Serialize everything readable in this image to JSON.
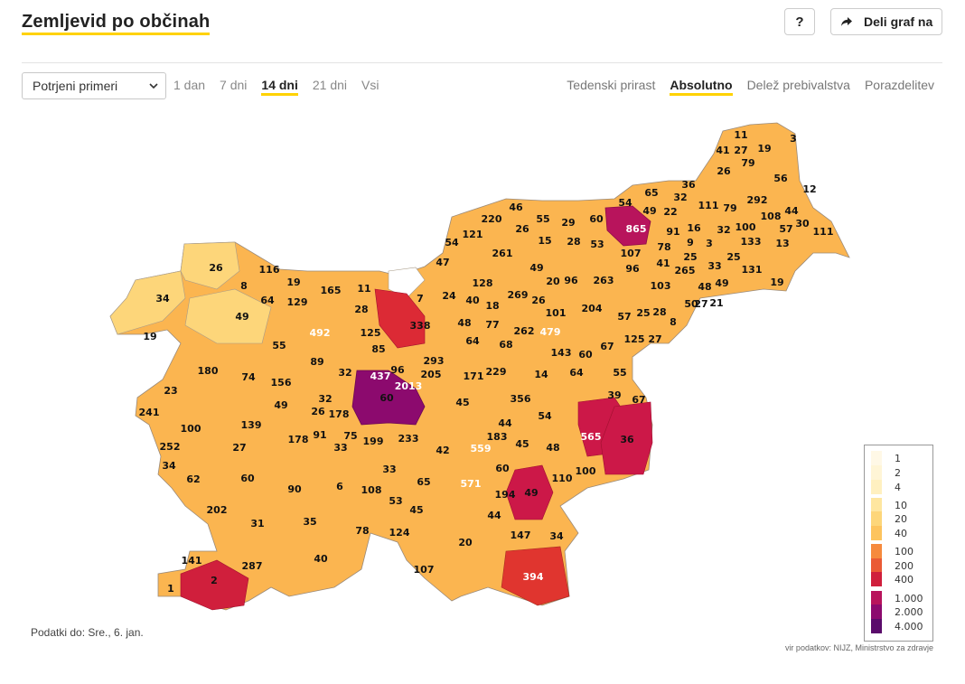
{
  "header": {
    "title": "Zemljevid po občinah",
    "help_label": "?",
    "share_label": "Deli graf na"
  },
  "controls": {
    "metric_select": "Potrjeni primeri",
    "time_filters": [
      {
        "label": "1 dan",
        "active": false
      },
      {
        "label": "7 dni",
        "active": false
      },
      {
        "label": "14 dni",
        "active": true
      },
      {
        "label": "21 dni",
        "active": false
      },
      {
        "label": "Vsi",
        "active": false
      }
    ],
    "view_modes": [
      {
        "label": "Tedenski prirast",
        "active": false
      },
      {
        "label": "Absolutno",
        "active": true
      },
      {
        "label": "Delež prebivalstva",
        "active": false
      },
      {
        "label": "Porazdelitev",
        "active": false
      }
    ]
  },
  "map": {
    "municipality_values": [
      {
        "v": "11",
        "c": "#fee6a0"
      },
      {
        "v": "27",
        "c": "#fdd67a"
      },
      {
        "v": "19",
        "c": "#fdd67a"
      },
      {
        "v": "3",
        "c": "#fff5d6"
      },
      {
        "v": "41",
        "c": "#fdc45e"
      },
      {
        "v": "79",
        "c": "#fbaa4e"
      },
      {
        "v": "26",
        "c": "#fdd67a"
      },
      {
        "v": "56",
        "c": "#fbb550"
      },
      {
        "v": "12",
        "c": "#fee6a0"
      },
      {
        "v": "36",
        "c": "#fdc45e"
      },
      {
        "v": "65",
        "c": "#fbaa4e"
      },
      {
        "v": "32",
        "c": "#fdc45e"
      },
      {
        "v": "54",
        "c": "#fbb550"
      },
      {
        "v": "49",
        "c": "#fdc45e"
      },
      {
        "v": "22",
        "c": "#fdd67a"
      },
      {
        "v": "111",
        "c": "#f68a3d"
      },
      {
        "v": "79",
        "c": "#fbaa4e"
      },
      {
        "v": "292",
        "c": "#e0352f"
      },
      {
        "v": "108",
        "c": "#f68a3d"
      },
      {
        "v": "44",
        "c": "#fdc45e"
      },
      {
        "v": "30",
        "c": "#fdd67a"
      },
      {
        "v": "57",
        "c": "#fbb550"
      },
      {
        "v": "111",
        "c": "#f68a3d"
      },
      {
        "v": "13",
        "c": "#fee6a0"
      },
      {
        "v": "46",
        "c": "#fdc45e"
      },
      {
        "v": "55",
        "c": "#fbb550"
      },
      {
        "v": "29",
        "c": "#fdd67a"
      },
      {
        "v": "60",
        "c": "#fbb550"
      },
      {
        "v": "220",
        "c": "#ea5a35"
      },
      {
        "v": "121",
        "c": "#f2713a"
      },
      {
        "v": "26",
        "c": "#fdd67a"
      },
      {
        "v": "15",
        "c": "#fee6a0"
      },
      {
        "v": "28",
        "c": "#fdd67a"
      },
      {
        "v": "53",
        "c": "#fbb550"
      },
      {
        "v": "865",
        "c": "#b8145c"
      },
      {
        "v": "91",
        "c": "#fbaa4e"
      },
      {
        "v": "16",
        "c": "#fee6a0"
      },
      {
        "v": "32",
        "c": "#fdc45e"
      },
      {
        "v": "100",
        "c": "#f68a3d"
      },
      {
        "v": "133",
        "c": "#f2713a"
      },
      {
        "v": "54",
        "c": "#fbb550"
      },
      {
        "v": "47",
        "c": "#fdc45e"
      },
      {
        "v": "261",
        "c": "#e0352f"
      },
      {
        "v": "49",
        "c": "#fdc45e"
      },
      {
        "v": "78",
        "c": "#fbaa4e"
      },
      {
        "v": "9",
        "c": "#fff0c0"
      },
      {
        "v": "3",
        "c": "#fff5d6"
      },
      {
        "v": "107",
        "c": "#f68a3d"
      },
      {
        "v": "25",
        "c": "#fdd67a"
      },
      {
        "v": "41",
        "c": "#fdc45e"
      },
      {
        "v": "265",
        "c": "#e0352f"
      },
      {
        "v": "33",
        "c": "#fdc45e"
      },
      {
        "v": "25",
        "c": "#fdd67a"
      },
      {
        "v": "131",
        "c": "#f2713a"
      },
      {
        "v": "96",
        "c": "#fbaa4e"
      },
      {
        "v": "48",
        "c": "#fdc45e"
      },
      {
        "v": "49",
        "c": "#fdc45e"
      },
      {
        "v": "19",
        "c": "#fdd67a"
      },
      {
        "v": "26",
        "c": "#fdd67a"
      },
      {
        "v": "116",
        "c": "#f68a3d"
      },
      {
        "v": "19",
        "c": "#fdd67a"
      },
      {
        "v": "165",
        "c": "#ec6636"
      },
      {
        "v": "11",
        "c": "#fee6a0"
      },
      {
        "v": "8",
        "c": "#fff0c0"
      },
      {
        "v": "64",
        "c": "#fbaa4e"
      },
      {
        "v": "129",
        "c": "#f2713a"
      },
      {
        "v": "128",
        "c": "#f2713a"
      },
      {
        "v": "20",
        "c": "#fdd67a"
      },
      {
        "v": "96",
        "c": "#fbaa4e"
      },
      {
        "v": "263",
        "c": "#e0352f"
      },
      {
        "v": "103",
        "c": "#f68a3d"
      },
      {
        "v": "27",
        "c": "#fdd67a"
      },
      {
        "v": "7",
        "c": "#fff0c0"
      },
      {
        "v": "24",
        "c": "#fdd67a"
      },
      {
        "v": "40",
        "c": "#fdc45e"
      },
      {
        "v": "269",
        "c": "#e0352f"
      },
      {
        "v": "26",
        "c": "#fdd67a"
      },
      {
        "v": "50",
        "c": "#fbb550"
      },
      {
        "v": "21",
        "c": "#fdd67a"
      },
      {
        "v": "34",
        "c": "#fdc45e"
      },
      {
        "v": "28",
        "c": "#fdd67a"
      },
      {
        "v": "18",
        "c": "#fee6a0"
      },
      {
        "v": "101",
        "c": "#f68a3d"
      },
      {
        "v": "204",
        "c": "#ea5a35"
      },
      {
        "v": "57",
        "c": "#fbb550"
      },
      {
        "v": "25",
        "c": "#fdd67a"
      },
      {
        "v": "28",
        "c": "#fdd67a"
      },
      {
        "v": "8",
        "c": "#fff0c0"
      },
      {
        "v": "19",
        "c": "#fdd67a"
      },
      {
        "v": "492",
        "c": "#d01f3c"
      },
      {
        "v": "338",
        "c": "#dc2a35"
      },
      {
        "v": "48",
        "c": "#fdc45e"
      },
      {
        "v": "77",
        "c": "#fbaa4e"
      },
      {
        "v": "262",
        "c": "#e0352f"
      },
      {
        "v": "479",
        "c": "#d01f3c"
      },
      {
        "v": "125",
        "c": "#f2713a"
      },
      {
        "v": "49",
        "c": "#fdc45e"
      },
      {
        "v": "55",
        "c": "#fbb550"
      },
      {
        "v": "125",
        "c": "#f2713a"
      },
      {
        "v": "27",
        "c": "#fdd67a"
      },
      {
        "v": "64",
        "c": "#fbaa4e"
      },
      {
        "v": "68",
        "c": "#fbaa4e"
      },
      {
        "v": "143",
        "c": "#f2713a"
      },
      {
        "v": "67",
        "c": "#fbaa4e"
      },
      {
        "v": "85",
        "c": "#fbaa4e"
      },
      {
        "v": "180",
        "c": "#ec6636"
      },
      {
        "v": "89",
        "c": "#fbaa4e"
      },
      {
        "v": "293",
        "c": "#e0352f"
      },
      {
        "v": "60",
        "c": "#fbb550"
      },
      {
        "v": "55",
        "c": "#fbb550"
      },
      {
        "v": "23",
        "c": "#fdd67a"
      },
      {
        "v": "74",
        "c": "#fbaa4e"
      },
      {
        "v": "156",
        "c": "#ec6636"
      },
      {
        "v": "32",
        "c": "#fdc45e"
      },
      {
        "v": "437",
        "c": "#d01f3c"
      },
      {
        "v": "96",
        "c": "#fbaa4e"
      },
      {
        "v": "205",
        "c": "#ea5a35"
      },
      {
        "v": "171",
        "c": "#ec6636"
      },
      {
        "v": "229",
        "c": "#ea5a35"
      },
      {
        "v": "14",
        "c": "#fee6a0"
      },
      {
        "v": "64",
        "c": "#fbaa4e"
      },
      {
        "v": "39",
        "c": "#fdc45e"
      },
      {
        "v": "67",
        "c": "#fbaa4e"
      },
      {
        "v": "2013",
        "c": "#8c0a6e"
      },
      {
        "v": "60",
        "c": "#fbb550"
      },
      {
        "v": "49",
        "c": "#fdc45e"
      },
      {
        "v": "32",
        "c": "#fdc45e"
      },
      {
        "v": "26",
        "c": "#fdd67a"
      },
      {
        "v": "178",
        "c": "#ec6636"
      },
      {
        "v": "45",
        "c": "#fdc45e"
      },
      {
        "v": "356",
        "c": "#dc2a35"
      },
      {
        "v": "54",
        "c": "#fbb550"
      },
      {
        "v": "241",
        "c": "#e0352f"
      },
      {
        "v": "100",
        "c": "#f68a3d"
      },
      {
        "v": "139",
        "c": "#f2713a"
      },
      {
        "v": "178",
        "c": "#ec6636"
      },
      {
        "v": "91",
        "c": "#fbaa4e"
      },
      {
        "v": "75",
        "c": "#fbaa4e"
      },
      {
        "v": "199",
        "c": "#ec6636"
      },
      {
        "v": "233",
        "c": "#ea5a35"
      },
      {
        "v": "42",
        "c": "#fdc45e"
      },
      {
        "v": "44",
        "c": "#fdc45e"
      },
      {
        "v": "183",
        "c": "#ec6636"
      },
      {
        "v": "559",
        "c": "#cc1848"
      },
      {
        "v": "565",
        "c": "#cc1848"
      },
      {
        "v": "36",
        "c": "#fdc45e"
      },
      {
        "v": "252",
        "c": "#e0352f"
      },
      {
        "v": "27",
        "c": "#fdd67a"
      },
      {
        "v": "33",
        "c": "#fdc45e"
      },
      {
        "v": "45",
        "c": "#fdc45e"
      },
      {
        "v": "48",
        "c": "#fdc45e"
      },
      {
        "v": "34",
        "c": "#fdc45e"
      },
      {
        "v": "62",
        "c": "#fbb550"
      },
      {
        "v": "60",
        "c": "#fbb550"
      },
      {
        "v": "33",
        "c": "#fdc45e"
      },
      {
        "v": "60",
        "c": "#fbb550"
      },
      {
        "v": "100",
        "c": "#f68a3d"
      },
      {
        "v": "110",
        "c": "#f68a3d"
      },
      {
        "v": "90",
        "c": "#fbaa4e"
      },
      {
        "v": "6",
        "c": "#fff0c0"
      },
      {
        "v": "108",
        "c": "#f68a3d"
      },
      {
        "v": "65",
        "c": "#fbaa4e"
      },
      {
        "v": "571",
        "c": "#cc1848"
      },
      {
        "v": "49",
        "c": "#fdc45e"
      },
      {
        "v": "53",
        "c": "#fbb550"
      },
      {
        "v": "194",
        "c": "#ec6636"
      },
      {
        "v": "202",
        "c": "#ea5a35"
      },
      {
        "v": "45",
        "c": "#fdc45e"
      },
      {
        "v": "44",
        "c": "#fdc45e"
      },
      {
        "v": "31",
        "c": "#fdc45e"
      },
      {
        "v": "35",
        "c": "#fdc45e"
      },
      {
        "v": "78",
        "c": "#fbaa4e"
      },
      {
        "v": "147",
        "c": "#f2713a"
      },
      {
        "v": "34",
        "c": "#fdc45e"
      },
      {
        "v": "124",
        "c": "#f2713a"
      },
      {
        "v": "20",
        "c": "#fdd67a"
      },
      {
        "v": "141",
        "c": "#f2713a"
      },
      {
        "v": "40",
        "c": "#fdc45e"
      },
      {
        "v": "287",
        "c": "#e0352f"
      },
      {
        "v": "394",
        "c": "#d01f3c"
      },
      {
        "v": "2",
        "c": "#fff5d6"
      },
      {
        "v": "107",
        "c": "#f68a3d"
      },
      {
        "v": "1",
        "c": "#fff8e6"
      }
    ]
  },
  "legend": {
    "items": [
      {
        "label": "1",
        "color": "#fff8e6"
      },
      {
        "label": "2",
        "color": "#fff5d6"
      },
      {
        "label": "4",
        "color": "#fff0c0"
      },
      {
        "label": "10",
        "color": "#fee6a0"
      },
      {
        "label": "20",
        "color": "#fdd67a"
      },
      {
        "label": "40",
        "color": "#fdc45e"
      },
      {
        "label": "100",
        "color": "#f68a3d"
      },
      {
        "label": "200",
        "color": "#ea5a35"
      },
      {
        "label": "400",
        "color": "#d01f3c"
      },
      {
        "label": "1.000",
        "color": "#b8145c"
      },
      {
        "label": "2.000",
        "color": "#8c0a6e"
      },
      {
        "label": "4.000",
        "color": "#5a0b6b"
      }
    ]
  },
  "footer": {
    "data_date": "Podatki do: Sre., 6. jan.",
    "source": "vir podatkov: NIJZ, Ministrstvo za zdravje"
  },
  "colors": {
    "accent_underline": "#ffd200",
    "map_border": "#9a8a7a"
  }
}
